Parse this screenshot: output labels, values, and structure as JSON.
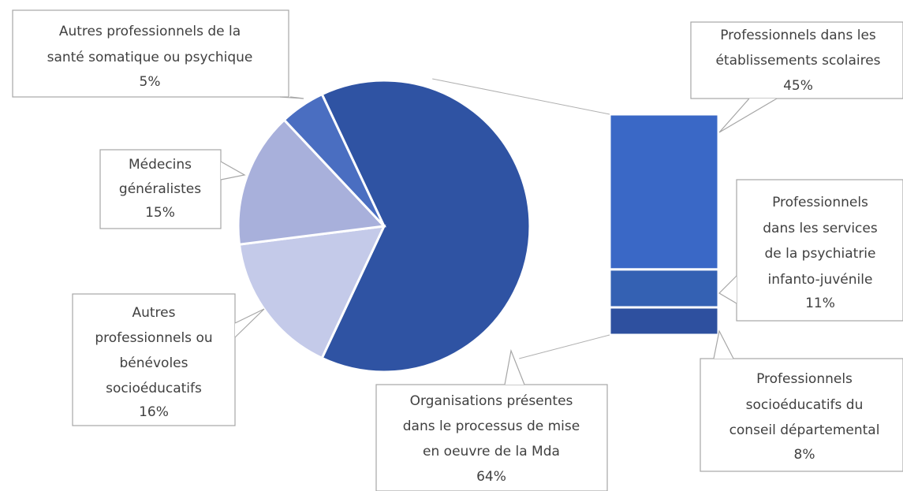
{
  "chart_data": {
    "type": "bar-of-pie",
    "categories": [
      [
        "Organisations présentes",
        "dans le processus de mise",
        "en oeuvre de la Mda"
      ],
      [
        "Autres",
        "professionnels ou",
        "bénévoles",
        "socioéducatifs"
      ],
      [
        "Médecins",
        "généralistes"
      ],
      [
        "Autres professionnels de la",
        "santé somatique ou psychique"
      ]
    ],
    "values": [
      64,
      16,
      15,
      5
    ],
    "value_labels": [
      "64%",
      "16%",
      "15%",
      "5%"
    ],
    "colors": [
      "#2f53a3",
      "#c4cae9",
      "#a8b0db",
      "#4a6ec1"
    ],
    "bar": {
      "categories": [
        [
          "Professionnels dans les",
          "établissements scolaires"
        ],
        [
          "Professionnels",
          "dans les services",
          "de la psychiatrie",
          "infanto-juvénile"
        ],
        [
          "Professionnels",
          "socioéducatifs du",
          "conseil départemental"
        ]
      ],
      "values": [
        45,
        11,
        8
      ],
      "value_labels": [
        "45%",
        "11%",
        "8%"
      ],
      "colors": [
        "#3a68c6",
        "#3461b3",
        "#2e509f"
      ]
    }
  }
}
